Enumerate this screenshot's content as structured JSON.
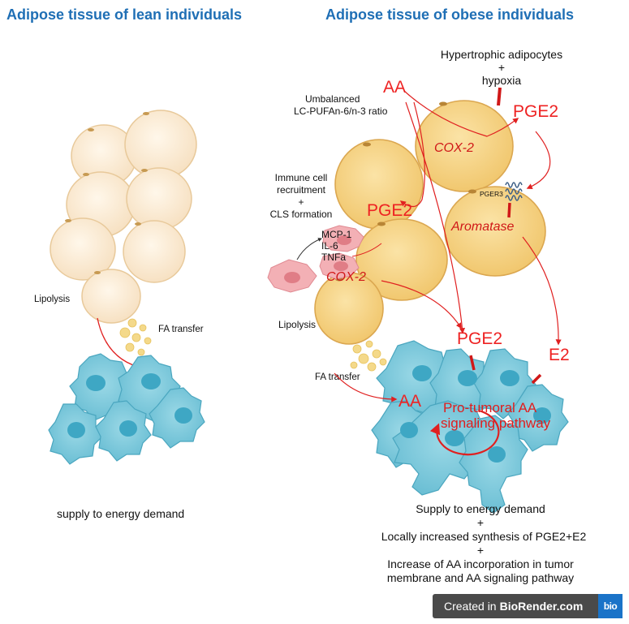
{
  "titles": {
    "left": "Adipose tissue of lean individuals",
    "right": "Adipose tissue of obese individuals"
  },
  "left_panel": {
    "lipolysis": "Lipolysis",
    "fa_transfer": "FA transfer",
    "caption": "supply to energy demand"
  },
  "right_panel": {
    "hypertrophic_line1": "Hypertrophic adipocytes",
    "plus": "+",
    "hypoxia": "hypoxia",
    "aa_top": "AA",
    "unbalanced_line1": "Umbalanced",
    "unbalanced_line2": "LC-PUFAn-6/n-3 ratio",
    "cox2_top": "COX-2",
    "pge2_top_right": "PGE2",
    "pger3": "PGER3",
    "aromatase": "Aromatase",
    "immune_line1": "Immune cell",
    "immune_line2": "recruitment",
    "immune_line3": "+",
    "immune_line4": "CLS formation",
    "pge2_mid": "PGE2",
    "mcp1": "MCP-1",
    "il6": "IL-6",
    "tnfa": "TNFa",
    "cox2_mid": "COX-2",
    "lipolysis": "Lipolysis",
    "pge2_low": "PGE2",
    "e2": "E2",
    "fa_transfer": "FA transfer",
    "aa_tumor": "AA",
    "pathway_line1": "Pro-tumoral AA",
    "pathway_line2": "signaling pathway",
    "summary_line1": "Supply to energy demand",
    "summary_plus1": "+",
    "summary_line2": "Locally increased synthesis of PGE2+E2",
    "summary_plus2": "+",
    "summary_line3": "Increase of AA incorporation in tumor",
    "summary_line4": "membrane and AA signaling pathway"
  },
  "badge": {
    "prefix": "Created in",
    "brand": "BioRender.com",
    "logo": "bio"
  },
  "colors": {
    "title_blue": "#1f6fb5",
    "lean_adipocyte": "#fbecd6",
    "obese_adipocyte": "#f7d88e",
    "tumor_cell": "#7fcbdc",
    "tumor_nucleus": "#3ea7c4",
    "arrow_red": "#e02020",
    "macrophage_pink": "#f3a7ad"
  }
}
